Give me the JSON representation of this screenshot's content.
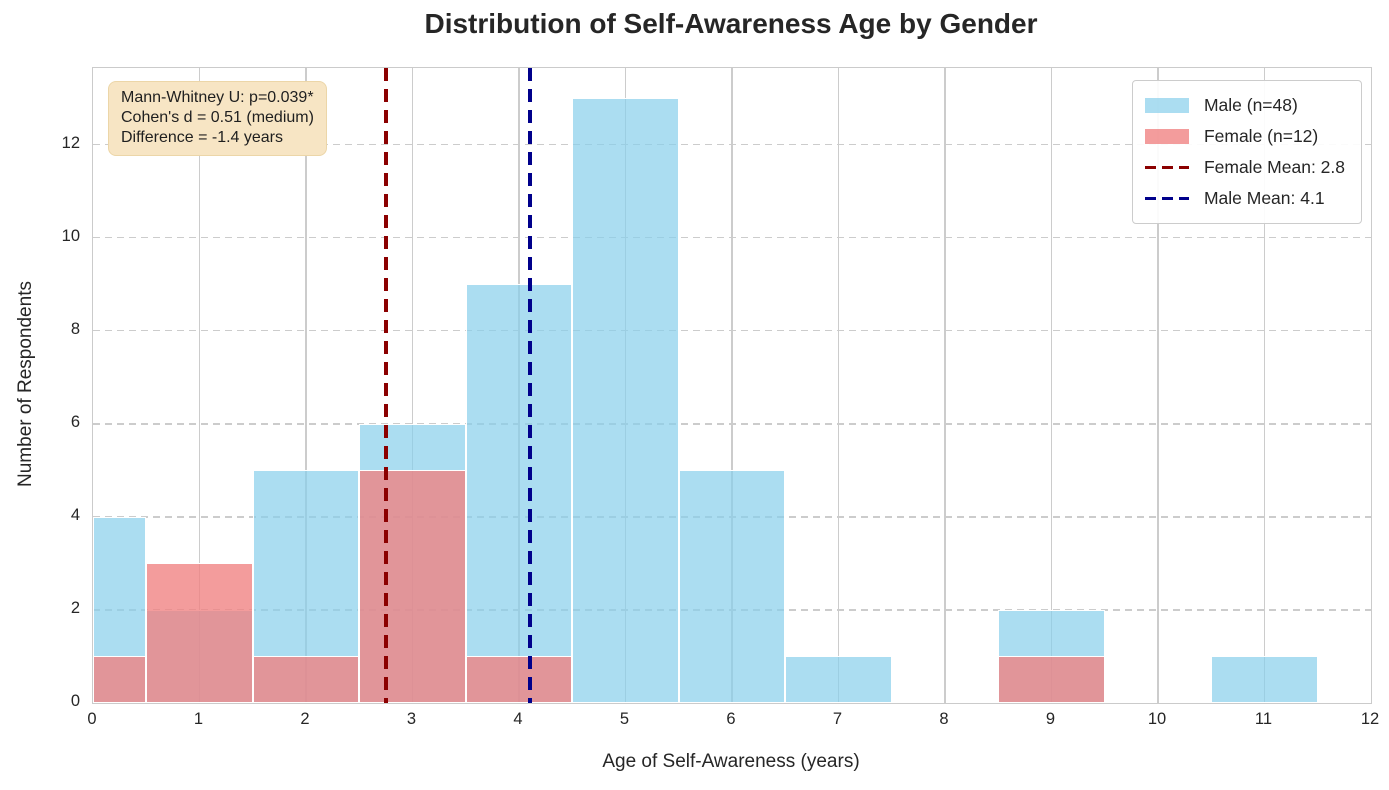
{
  "title": "Distribution of Self-Awareness Age by Gender",
  "axes": {
    "xlabel": "Age of Self-Awareness (years)",
    "ylabel": "Number of Respondents",
    "x_ticks": [
      0,
      1,
      2,
      3,
      4,
      5,
      6,
      7,
      8,
      9,
      10,
      11,
      12
    ],
    "y_ticks": [
      0,
      2,
      4,
      6,
      8,
      10,
      12
    ]
  },
  "stats_box": {
    "lines": [
      "Mann-Whitney U: p=0.039*",
      "Cohen's d = 0.51 (medium)",
      "Difference = -1.4 years"
    ]
  },
  "legend": {
    "items": [
      {
        "kind": "patch",
        "color_key": "male_fill",
        "label": "Male (n=48)"
      },
      {
        "kind": "patch",
        "color_key": "female_fill",
        "label": "Female (n=12)"
      },
      {
        "kind": "line",
        "color_key": "female_mean",
        "label": "Female Mean: 2.8"
      },
      {
        "kind": "line",
        "color_key": "male_mean",
        "label": "Male Mean: 4.1"
      }
    ]
  },
  "colors": {
    "male_fill": "rgba(135,206,235,0.7)",
    "female_fill": "rgba(240,128,128,0.78)",
    "female_mean": "#8B0000",
    "male_mean": "#00008B",
    "grid": "#cccccc",
    "spine": "#cbcbcb",
    "stats_bg": "#f7e5c4",
    "text": "#262626"
  },
  "chart_data": {
    "type": "bar",
    "subtype": "histogram",
    "title": "Distribution of Self-Awareness Age by Gender",
    "xlabel": "Age of Self-Awareness (years)",
    "ylabel": "Number of Respondents",
    "bin_centers": [
      0,
      1,
      2,
      3,
      4,
      5,
      6,
      7,
      8,
      9,
      10,
      11
    ],
    "bin_width": 1,
    "series": [
      {
        "name": "Male (n=48)",
        "n": 48,
        "values": [
          4,
          2,
          5,
          6,
          9,
          13,
          5,
          1,
          0,
          2,
          0,
          1
        ],
        "mean": 4.1,
        "color_key": "male_fill"
      },
      {
        "name": "Female (n=12)",
        "n": 12,
        "values": [
          1,
          3,
          1,
          5,
          1,
          0,
          0,
          0,
          0,
          1,
          0,
          0
        ],
        "mean": 2.75,
        "color_key": "female_fill"
      }
    ],
    "mean_lines": [
      {
        "label": "Female Mean: 2.8",
        "x": 2.75,
        "color_key": "female_mean"
      },
      {
        "label": "Male Mean: 4.1",
        "x": 4.1,
        "color_key": "male_mean"
      }
    ],
    "xlim": [
      0,
      12
    ],
    "ylim": [
      0,
      13.65
    ],
    "grid": true,
    "legend_position": "upper right",
    "annotations": [
      "Mann-Whitney U: p=0.039*",
      "Cohen's d = 0.51 (medium)",
      "Difference = -1.4 years"
    ]
  }
}
